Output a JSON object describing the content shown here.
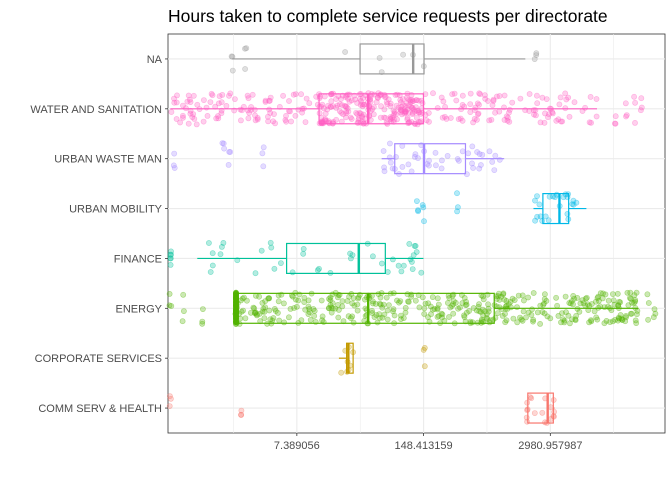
{
  "chart_data": {
    "type": "boxplot",
    "title": "Hours taken to complete service requests per directorate",
    "xlabel": "",
    "ylabel": "",
    "x_scale": "log",
    "x_tick_labels": [
      "7.389056",
      "148.413159",
      "2980.957987"
    ],
    "x_tick_values": [
      7.389056,
      148.413159,
      2980.957987
    ],
    "xlim": [
      0.35,
      45000
    ],
    "grid": true,
    "legend": "none",
    "categories": [
      "NA",
      "WATER AND SANITATION",
      "URBAN WASTE MAN",
      "URBAN MOBILITY",
      "FINANCE",
      "ENERGY",
      "CORPORATE SERVICES",
      "COMM SERV & HEALTH"
    ],
    "series": [
      {
        "category": "NA",
        "color": "#999999",
        "whisker_low": 1.6,
        "q1": 33,
        "median": 116,
        "q3": 150,
        "whisker_high": 1650,
        "outliers": [
          1.6,
          2.2,
          2100
        ],
        "n_points": 6
      },
      {
        "category": "WATER AND SANITATION",
        "color": "#ff61c3",
        "whisker_low": 0.37,
        "q1": 12.5,
        "median": 40,
        "q3": 148,
        "whisker_high": 9000,
        "outliers": [
          14000,
          18000,
          22000,
          26000
        ],
        "n_points": 420
      },
      {
        "category": "URBAN WASTE MAN",
        "color": "#a58aff",
        "whisker_low": 55,
        "q1": 75,
        "median": 150,
        "q3": 400,
        "whisker_high": 1000,
        "outliers": [
          0.4,
          1.3,
          1.5,
          3.3
        ],
        "n_points": 45
      },
      {
        "category": "URBAN MOBILITY",
        "color": "#00b8e7",
        "whisker_low": 2000,
        "q1": 2500,
        "median": 3700,
        "q3": 4600,
        "whisker_high": 7000,
        "outliers": [
          128,
          148,
          330
        ],
        "n_points": 24
      },
      {
        "category": "FINANCE",
        "color": "#00c19a",
        "whisker_low": 0.7,
        "q1": 5.8,
        "median": 32,
        "q3": 60,
        "whisker_high": 148,
        "outliers": [
          0.37,
          0.38
        ],
        "n_points": 40
      },
      {
        "category": "ENERGY",
        "color": "#53b400",
        "whisker_low": 1.75,
        "q1": 1.75,
        "median": 40,
        "q3": 790,
        "whisker_high": 24000,
        "outliers": [
          0.37,
          0.5,
          0.8,
          1.75,
          15000,
          20000,
          30000,
          35000
        ],
        "n_points": 520
      },
      {
        "category": "CORPORATE SERVICES",
        "color": "#c49a00",
        "whisker_low": 20,
        "q1": 24,
        "median": 25,
        "q3": 28,
        "whisker_high": 28,
        "outliers": [
          150
        ],
        "n_points": 8
      },
      {
        "category": "COMM SERV & HEALTH",
        "color": "#f8766d",
        "whisker_low": 1700,
        "q1": 1750,
        "median": 2800,
        "q3": 3200,
        "whisker_high": 3300,
        "outliers": [
          0.37,
          2.0
        ],
        "n_points": 18
      }
    ]
  }
}
